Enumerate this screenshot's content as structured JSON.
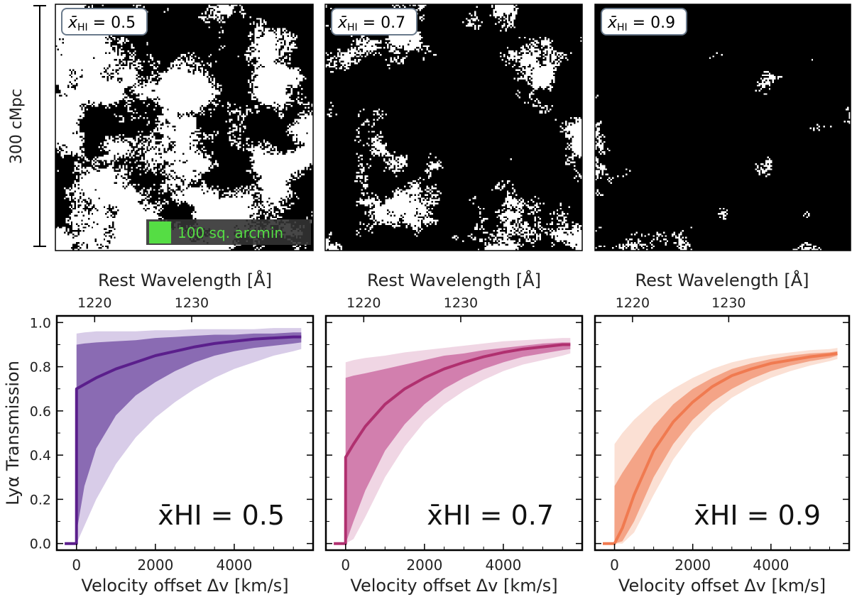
{
  "scale_bar": {
    "label": "300 cMpc"
  },
  "maps": [
    {
      "id": "map-05",
      "label": "0.5",
      "density": 0.52,
      "seed": 11
    },
    {
      "id": "map-07",
      "label": "0.7",
      "density": 0.72,
      "seed": 23
    },
    {
      "id": "map-09",
      "label": "0.9",
      "density": 0.9,
      "seed": 37
    }
  ],
  "map_label_symbol": "x̄",
  "map_label_sub": "HI",
  "area_legend": {
    "label": "100 sq. arcmin",
    "color": "#55dd44"
  },
  "chart_data": [
    {
      "type": "area",
      "title": "x̄HI = 0.5",
      "xlabel": "Velocity offset Δv [km/s]",
      "ylabel": "Lyα Transmission",
      "top_xlabel": "Rest Wavelength [Å]",
      "top_ticks": [
        {
          "value": 1220,
          "velocity": 460
        },
        {
          "value": 1230,
          "velocity": 2920
        }
      ],
      "xlim": [
        -500,
        6000
      ],
      "ylim": [
        -0.03,
        1.03
      ],
      "xticks": [
        0,
        2000,
        4000
      ],
      "yticks": [
        0.0,
        0.2,
        0.4,
        0.6,
        0.8,
        1.0
      ],
      "color": "#5b1f8c",
      "inner_color": "#8a6bb3",
      "outer_color": "#d8cce8",
      "x": [
        -300,
        -2,
        0,
        200,
        500,
        1000,
        1500,
        2000,
        2500,
        3000,
        3500,
        4000,
        4500,
        5000,
        5500,
        5700
      ],
      "series": [
        {
          "name": "median",
          "values": [
            0,
            0,
            0.7,
            0.72,
            0.75,
            0.79,
            0.82,
            0.85,
            0.87,
            0.89,
            0.905,
            0.915,
            0.925,
            0.93,
            0.935,
            0.935
          ]
        },
        {
          "name": "68% lower",
          "values": [
            0,
            0,
            0.05,
            0.26,
            0.43,
            0.58,
            0.67,
            0.73,
            0.78,
            0.82,
            0.85,
            0.87,
            0.885,
            0.895,
            0.905,
            0.91
          ]
        },
        {
          "name": "68% upper",
          "values": [
            0,
            0,
            0.9,
            0.905,
            0.91,
            0.915,
            0.92,
            0.93,
            0.935,
            0.94,
            0.945,
            0.945,
            0.95,
            0.95,
            0.955,
            0.955
          ]
        },
        {
          "name": "95% lower",
          "values": [
            0,
            0,
            0.0,
            0.08,
            0.2,
            0.36,
            0.48,
            0.57,
            0.64,
            0.7,
            0.75,
            0.79,
            0.82,
            0.85,
            0.87,
            0.88
          ]
        },
        {
          "name": "95% upper",
          "values": [
            0,
            0,
            0.95,
            0.955,
            0.96,
            0.96,
            0.96,
            0.965,
            0.965,
            0.97,
            0.97,
            0.97,
            0.97,
            0.975,
            0.975,
            0.975
          ]
        }
      ]
    },
    {
      "type": "area",
      "title": "x̄HI = 0.7",
      "xlabel": "Velocity offset Δv [km/s]",
      "ylabel": "",
      "top_xlabel": "Rest Wavelength [Å]",
      "top_ticks": [
        {
          "value": 1220,
          "velocity": 460
        },
        {
          "value": 1230,
          "velocity": 2920
        }
      ],
      "xlim": [
        -500,
        6000
      ],
      "ylim": [
        -0.03,
        1.03
      ],
      "xticks": [
        0,
        2000,
        4000
      ],
      "yticks": [
        0.0,
        0.2,
        0.4,
        0.6,
        0.8,
        1.0
      ],
      "color": "#b0306f",
      "inner_color": "#d27fae",
      "outer_color": "#f0d6e4",
      "x": [
        -300,
        -2,
        0,
        200,
        500,
        1000,
        1500,
        2000,
        2500,
        3000,
        3500,
        4000,
        4500,
        5000,
        5500,
        5700
      ],
      "series": [
        {
          "name": "median",
          "values": [
            0,
            0,
            0.39,
            0.45,
            0.53,
            0.63,
            0.7,
            0.75,
            0.79,
            0.82,
            0.845,
            0.865,
            0.88,
            0.89,
            0.9,
            0.9
          ]
        },
        {
          "name": "68% lower",
          "values": [
            0,
            0,
            0.0,
            0.1,
            0.24,
            0.42,
            0.54,
            0.63,
            0.7,
            0.75,
            0.79,
            0.82,
            0.845,
            0.86,
            0.875,
            0.88
          ]
        },
        {
          "name": "68% upper",
          "values": [
            0,
            0,
            0.75,
            0.76,
            0.77,
            0.79,
            0.81,
            0.83,
            0.85,
            0.86,
            0.875,
            0.885,
            0.895,
            0.905,
            0.91,
            0.91
          ]
        },
        {
          "name": "95% lower",
          "values": [
            0,
            0,
            0.0,
            0.02,
            0.12,
            0.3,
            0.44,
            0.55,
            0.63,
            0.69,
            0.74,
            0.78,
            0.81,
            0.83,
            0.85,
            0.86
          ]
        },
        {
          "name": "95% upper",
          "values": [
            0,
            0,
            0.82,
            0.83,
            0.84,
            0.85,
            0.865,
            0.875,
            0.885,
            0.895,
            0.905,
            0.915,
            0.92,
            0.925,
            0.93,
            0.93
          ]
        }
      ]
    },
    {
      "type": "area",
      "title": "x̄HI = 0.9",
      "xlabel": "Velocity offset Δv [km/s]",
      "ylabel": "",
      "top_xlabel": "Rest Wavelength [Å]",
      "top_ticks": [
        {
          "value": 1220,
          "velocity": 460
        },
        {
          "value": 1230,
          "velocity": 2920
        }
      ],
      "xlim": [
        -500,
        6000
      ],
      "ylim": [
        -0.03,
        1.03
      ],
      "xticks": [
        0,
        2000,
        4000
      ],
      "yticks": [
        0.0,
        0.2,
        0.4,
        0.6,
        0.8,
        1.0
      ],
      "color": "#f07a50",
      "inner_color": "#f4a487",
      "outer_color": "#fbe0d4",
      "x": [
        -300,
        -2,
        0,
        200,
        500,
        1000,
        1500,
        2000,
        2500,
        3000,
        3500,
        4000,
        4500,
        5000,
        5500,
        5700
      ],
      "series": [
        {
          "name": "median",
          "values": [
            0,
            0,
            0.0,
            0.07,
            0.22,
            0.42,
            0.55,
            0.64,
            0.71,
            0.76,
            0.79,
            0.815,
            0.83,
            0.845,
            0.855,
            0.86
          ]
        },
        {
          "name": "68% lower",
          "values": [
            0,
            0,
            0.0,
            0.01,
            0.1,
            0.3,
            0.45,
            0.56,
            0.64,
            0.7,
            0.745,
            0.78,
            0.805,
            0.825,
            0.84,
            0.85
          ]
        },
        {
          "name": "68% upper",
          "values": [
            0,
            0,
            0.26,
            0.32,
            0.4,
            0.53,
            0.63,
            0.7,
            0.75,
            0.79,
            0.815,
            0.835,
            0.85,
            0.86,
            0.865,
            0.87
          ]
        },
        {
          "name": "95% lower",
          "values": [
            0,
            0,
            0.0,
            0.0,
            0.05,
            0.22,
            0.38,
            0.5,
            0.59,
            0.66,
            0.71,
            0.75,
            0.78,
            0.805,
            0.825,
            0.835
          ]
        },
        {
          "name": "95% upper",
          "values": [
            0,
            0,
            0.45,
            0.5,
            0.56,
            0.64,
            0.7,
            0.75,
            0.79,
            0.82,
            0.84,
            0.855,
            0.865,
            0.875,
            0.88,
            0.885
          ]
        }
      ]
    }
  ]
}
